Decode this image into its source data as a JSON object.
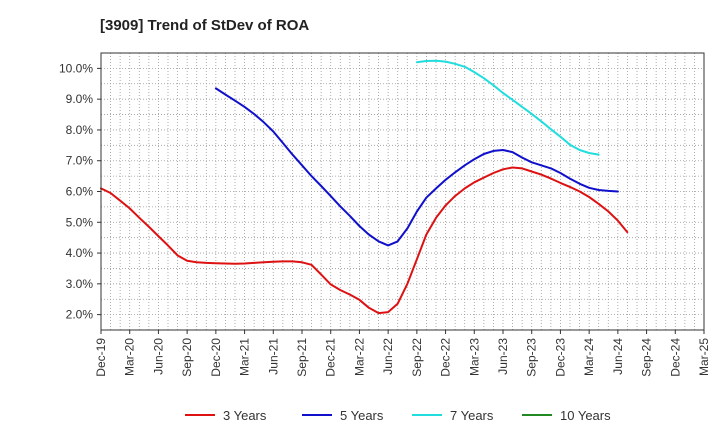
{
  "chart_data": {
    "type": "line",
    "title": "[3909]  Trend of StDev of ROA",
    "xlabel": "",
    "ylabel": "",
    "x_categories": [
      "Dec-19",
      "Mar-20",
      "Jun-20",
      "Sep-20",
      "Dec-20",
      "Mar-21",
      "Jun-21",
      "Sep-21",
      "Dec-21",
      "Mar-22",
      "Jun-22",
      "Sep-22",
      "Dec-22",
      "Mar-23",
      "Jun-23",
      "Sep-23",
      "Dec-23",
      "Mar-24",
      "Jun-24",
      "Sep-24",
      "Dec-24",
      "Mar-25"
    ],
    "y_ticks": [
      "2.0%",
      "3.0%",
      "4.0%",
      "5.0%",
      "6.0%",
      "7.0%",
      "8.0%",
      "9.0%",
      "10.0%"
    ],
    "ylim": [
      1.5,
      10.5
    ],
    "grid": true,
    "legend_position": "bottom",
    "series": [
      {
        "name": "3 Years",
        "color": "#dd1111",
        "points": [
          [
            0,
            6.1
          ],
          [
            0.33,
            5.95
          ],
          [
            0.67,
            5.7
          ],
          [
            1,
            5.45
          ],
          [
            1.33,
            5.15
          ],
          [
            1.67,
            4.85
          ],
          [
            2,
            4.55
          ],
          [
            2.33,
            4.25
          ],
          [
            2.67,
            3.92
          ],
          [
            3,
            3.75
          ],
          [
            3.33,
            3.7
          ],
          [
            3.67,
            3.68
          ],
          [
            4,
            3.67
          ],
          [
            4.33,
            3.66
          ],
          [
            4.67,
            3.65
          ],
          [
            5,
            3.66
          ],
          [
            5.33,
            3.68
          ],
          [
            5.67,
            3.7
          ],
          [
            6,
            3.72
          ],
          [
            6.33,
            3.73
          ],
          [
            6.67,
            3.73
          ],
          [
            7,
            3.7
          ],
          [
            7.33,
            3.62
          ],
          [
            7.67,
            3.3
          ],
          [
            8,
            2.98
          ],
          [
            8.33,
            2.8
          ],
          [
            8.67,
            2.65
          ],
          [
            9,
            2.48
          ],
          [
            9.33,
            2.22
          ],
          [
            9.67,
            2.05
          ],
          [
            10,
            2.08
          ],
          [
            10.33,
            2.35
          ],
          [
            10.67,
            3.0
          ],
          [
            11,
            3.8
          ],
          [
            11.33,
            4.6
          ],
          [
            11.67,
            5.15
          ],
          [
            12,
            5.55
          ],
          [
            12.33,
            5.85
          ],
          [
            12.67,
            6.1
          ],
          [
            13,
            6.3
          ],
          [
            13.33,
            6.45
          ],
          [
            13.67,
            6.6
          ],
          [
            14,
            6.72
          ],
          [
            14.33,
            6.78
          ],
          [
            14.67,
            6.75
          ],
          [
            15,
            6.65
          ],
          [
            15.33,
            6.55
          ],
          [
            15.67,
            6.42
          ],
          [
            16,
            6.28
          ],
          [
            16.33,
            6.15
          ],
          [
            16.67,
            6.0
          ],
          [
            17,
            5.82
          ],
          [
            17.33,
            5.6
          ],
          [
            17.67,
            5.35
          ],
          [
            18,
            5.05
          ],
          [
            18.33,
            4.68
          ]
        ]
      },
      {
        "name": "5 Years",
        "color": "#1010cc",
        "points": [
          [
            4,
            9.35
          ],
          [
            4.33,
            9.15
          ],
          [
            4.67,
            8.95
          ],
          [
            5,
            8.75
          ],
          [
            5.33,
            8.52
          ],
          [
            5.67,
            8.25
          ],
          [
            6,
            7.95
          ],
          [
            6.33,
            7.58
          ],
          [
            6.67,
            7.2
          ],
          [
            7,
            6.85
          ],
          [
            7.33,
            6.5
          ],
          [
            7.67,
            6.18
          ],
          [
            8,
            5.85
          ],
          [
            8.33,
            5.52
          ],
          [
            8.67,
            5.2
          ],
          [
            9,
            4.88
          ],
          [
            9.33,
            4.6
          ],
          [
            9.67,
            4.38
          ],
          [
            10,
            4.25
          ],
          [
            10.33,
            4.38
          ],
          [
            10.67,
            4.8
          ],
          [
            11,
            5.35
          ],
          [
            11.33,
            5.8
          ],
          [
            11.67,
            6.1
          ],
          [
            12,
            6.38
          ],
          [
            12.33,
            6.62
          ],
          [
            12.67,
            6.85
          ],
          [
            13,
            7.05
          ],
          [
            13.33,
            7.22
          ],
          [
            13.67,
            7.32
          ],
          [
            14,
            7.35
          ],
          [
            14.33,
            7.28
          ],
          [
            14.67,
            7.1
          ],
          [
            15,
            6.95
          ],
          [
            15.33,
            6.85
          ],
          [
            15.67,
            6.75
          ],
          [
            16,
            6.6
          ],
          [
            16.33,
            6.42
          ],
          [
            16.67,
            6.25
          ],
          [
            17,
            6.12
          ],
          [
            17.33,
            6.05
          ],
          [
            17.67,
            6.02
          ],
          [
            18,
            6.0
          ]
        ]
      },
      {
        "name": "7 Years",
        "color": "#22dddd",
        "points": [
          [
            11,
            10.2
          ],
          [
            11.33,
            10.24
          ],
          [
            11.67,
            10.25
          ],
          [
            12,
            10.22
          ],
          [
            12.33,
            10.15
          ],
          [
            12.67,
            10.05
          ],
          [
            13,
            9.88
          ],
          [
            13.33,
            9.68
          ],
          [
            13.67,
            9.45
          ],
          [
            14,
            9.2
          ],
          [
            14.33,
            8.98
          ],
          [
            14.67,
            8.75
          ],
          [
            15,
            8.52
          ],
          [
            15.33,
            8.28
          ],
          [
            15.67,
            8.02
          ],
          [
            16,
            7.78
          ],
          [
            16.33,
            7.52
          ],
          [
            16.67,
            7.35
          ],
          [
            17,
            7.25
          ],
          [
            17.33,
            7.2
          ]
        ]
      },
      {
        "name": "10 Years",
        "color": "#228822",
        "points": []
      }
    ]
  }
}
